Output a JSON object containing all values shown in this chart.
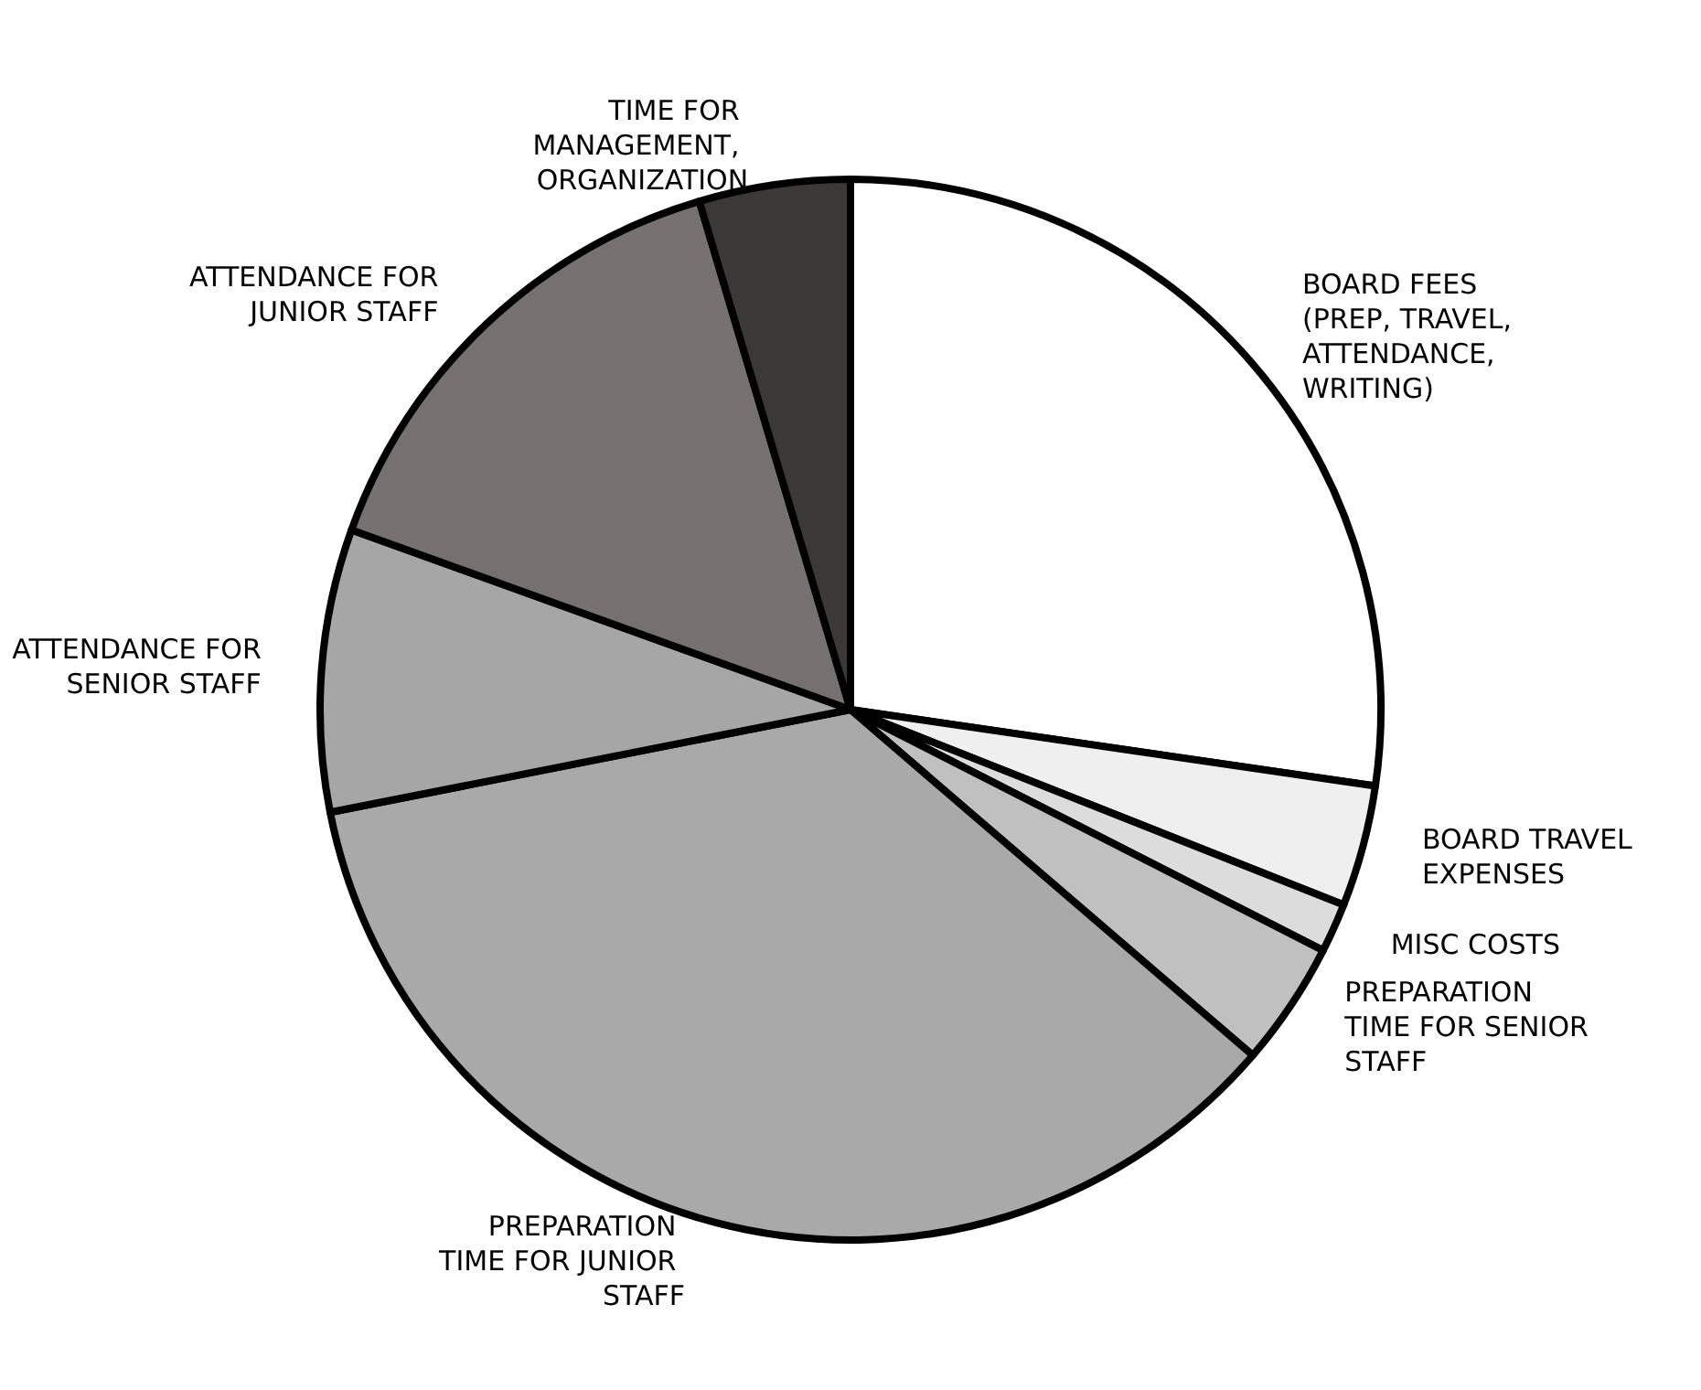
{
  "chart_data": {
    "type": "pie",
    "categories": [
      "BOARD FEES (PREP, TRAVEL, ATTENDANCE, WRITING)",
      "BOARD TRAVEL EXPENSES",
      "MISC COSTS",
      "PREPARATION TIME FOR SENIOR STAFF",
      "PREPARATION TIME FOR JUNIOR STAFF",
      "ATTENDANCE FOR SENIOR STAFF",
      "ATTENDANCE FOR JUNIOR STAFF",
      "TIME FOR MANAGEMENT, ORGANIZATION"
    ],
    "values": [
      27.3,
      3.7,
      1.5,
      3.8,
      35.6,
      8.6,
      14.9,
      4.6
    ],
    "colors": [
      "#ffffff",
      "#efefef",
      "#dcdcdc",
      "#c0c0c0",
      "#a9a9a9",
      "#a6a6a6",
      "#767170",
      "#3b3937"
    ],
    "legend": false
  }
}
